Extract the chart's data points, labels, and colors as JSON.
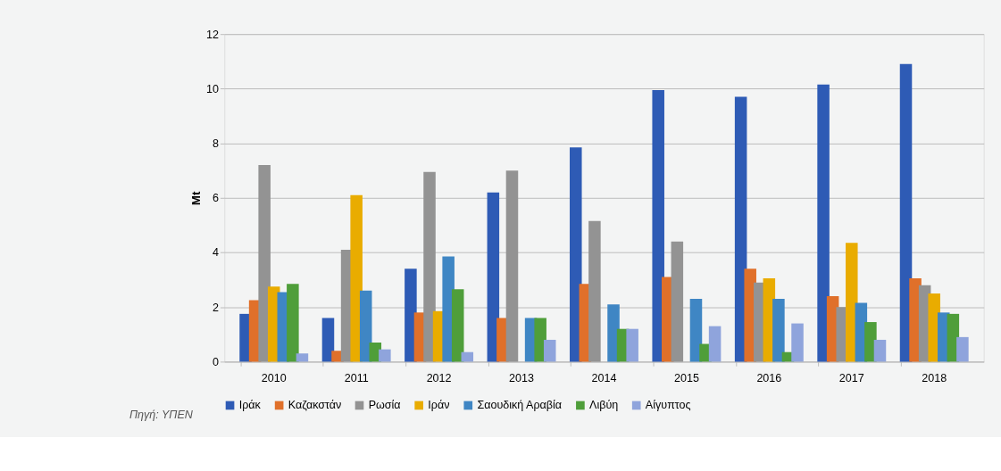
{
  "chart_data": {
    "type": "bar",
    "ylabel": "Mt",
    "categories": [
      "2010",
      "2011",
      "2012",
      "2013",
      "2014",
      "2015",
      "2016",
      "2017",
      "2018"
    ],
    "series": [
      {
        "name": "Ιράκ",
        "color": "#2e5bb5",
        "values": [
          1.75,
          1.6,
          3.4,
          6.2,
          7.85,
          9.95,
          9.7,
          10.15,
          10.9
        ]
      },
      {
        "name": "Καζακστάν",
        "color": "#e0702a",
        "values": [
          2.25,
          0.4,
          1.8,
          1.6,
          2.85,
          3.1,
          3.4,
          2.4,
          3.05
        ]
      },
      {
        "name": "Ρωσία",
        "color": "#939393",
        "values": [
          7.2,
          4.1,
          6.95,
          7.0,
          5.15,
          4.4,
          2.9,
          2.0,
          2.8
        ]
      },
      {
        "name": "Ιράν",
        "color": "#e9ac00",
        "values": [
          2.75,
          6.1,
          1.85,
          null,
          null,
          null,
          3.05,
          4.35,
          2.5
        ]
      },
      {
        "name": "Σαουδική Αραβία",
        "color": "#3f86c4",
        "values": [
          2.55,
          2.6,
          3.85,
          1.6,
          2.1,
          2.3,
          2.3,
          2.15,
          1.8
        ]
      },
      {
        "name": "Λιβύη",
        "color": "#4f9e3a",
        "values": [
          2.85,
          0.7,
          2.65,
          1.6,
          1.2,
          0.65,
          0.35,
          1.45,
          1.75
        ]
      },
      {
        "name": "Αίγυπτος",
        "color": "#8fa4dc",
        "values": [
          0.3,
          0.45,
          0.35,
          0.8,
          1.2,
          1.3,
          1.4,
          0.8,
          0.9
        ]
      }
    ],
    "ylim": [
      0,
      12
    ],
    "yticks": [
      0,
      2,
      4,
      6,
      8,
      10,
      12
    ],
    "grid": "y",
    "legend": "bottom",
    "annotations": [
      "Πηγή: ΥΠΕΝ"
    ]
  }
}
